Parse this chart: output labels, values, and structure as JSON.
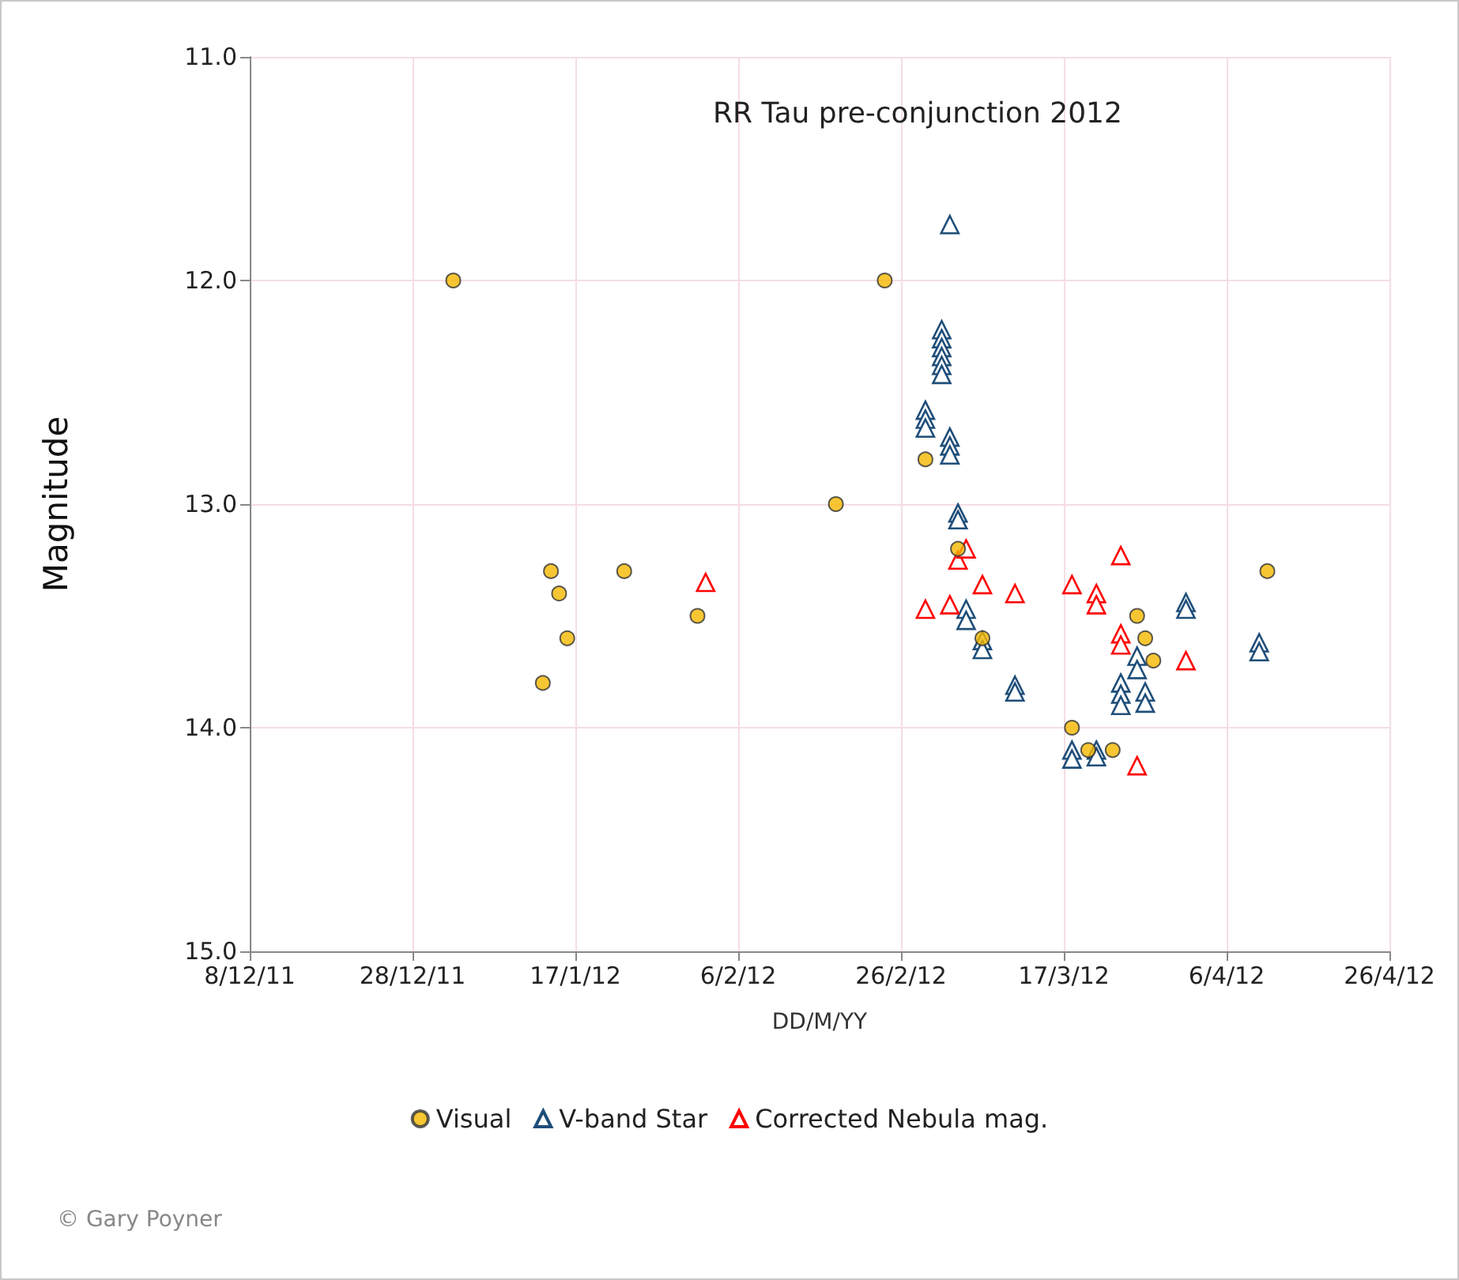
{
  "chart_data": {
    "type": "scatter",
    "title": "RR Tau pre-conjunction 2012",
    "xlabel": "DD/M/YY",
    "ylabel": "Magnitude",
    "annotations": [
      "© Gary Poyner"
    ],
    "xlim": [
      "2011-12-08",
      "2012-04-26"
    ],
    "xticks": [
      {
        "value": "2011-12-08",
        "label": "8/12/11"
      },
      {
        "value": "2011-12-28",
        "label": "28/12/11"
      },
      {
        "value": "2012-01-17",
        "label": "17/1/12"
      },
      {
        "value": "2012-02-06",
        "label": "6/2/12"
      },
      {
        "value": "2012-02-26",
        "label": "26/2/12"
      },
      {
        "value": "2012-03-17",
        "label": "17/3/12"
      },
      {
        "value": "2012-04-06",
        "label": "6/4/12"
      },
      {
        "value": "2012-04-26",
        "label": "26/4/12"
      }
    ],
    "ylim": [
      15,
      11
    ],
    "yticks": [
      {
        "value": 11,
        "label": "11.0"
      },
      {
        "value": 12,
        "label": "12.0"
      },
      {
        "value": 13,
        "label": "13.0"
      },
      {
        "value": 14,
        "label": "14.0"
      },
      {
        "value": 15,
        "label": "15.0"
      }
    ],
    "grid": true,
    "legend": "bottom",
    "series": [
      {
        "name": "Visual",
        "color": "#f5b800",
        "marker": "circle",
        "x": [
          "2012-01-02",
          "2012-01-13",
          "2012-01-14",
          "2012-01-15",
          "2012-01-16",
          "2012-01-23",
          "2012-02-01",
          "2012-02-18",
          "2012-02-24",
          "2012-02-29",
          "2012-03-04",
          "2012-03-07",
          "2012-03-18",
          "2012-03-20",
          "2012-03-23",
          "2012-03-26",
          "2012-03-27",
          "2012-03-28",
          "2012-04-11"
        ],
        "values": [
          12.0,
          13.8,
          13.3,
          13.4,
          13.6,
          13.3,
          13.5,
          13.0,
          12.0,
          12.8,
          13.2,
          13.6,
          14.0,
          14.1,
          14.1,
          13.5,
          13.6,
          13.7,
          13.3
        ]
      },
      {
        "name": "V-band Star",
        "color": "#1f4e79",
        "marker": "triangle",
        "x": [
          "2012-03-03",
          "2012-03-02",
          "2012-03-02",
          "2012-03-02",
          "2012-03-02",
          "2012-03-02",
          "2012-03-02",
          "2012-02-29",
          "2012-02-29",
          "2012-02-29",
          "2012-03-03",
          "2012-03-03",
          "2012-03-03",
          "2012-03-04",
          "2012-03-04",
          "2012-03-05",
          "2012-03-05",
          "2012-03-07",
          "2012-03-07",
          "2012-03-11",
          "2012-03-11",
          "2012-03-18",
          "2012-03-18",
          "2012-03-21",
          "2012-03-21",
          "2012-03-24",
          "2012-03-24",
          "2012-03-24",
          "2012-03-26",
          "2012-03-26",
          "2012-03-27",
          "2012-03-27",
          "2012-04-01",
          "2012-04-01",
          "2012-04-10",
          "2012-04-10"
        ],
        "values": [
          11.75,
          12.22,
          12.26,
          12.3,
          12.34,
          12.38,
          12.42,
          12.58,
          12.62,
          12.66,
          12.7,
          12.74,
          12.78,
          13.04,
          13.07,
          13.47,
          13.52,
          13.61,
          13.65,
          13.81,
          13.84,
          14.1,
          14.14,
          14.1,
          14.13,
          13.8,
          13.85,
          13.9,
          13.68,
          13.74,
          13.84,
          13.89,
          13.44,
          13.47,
          13.62,
          13.66
        ]
      },
      {
        "name": "Corrected Nebula mag.",
        "color": "#ff0000",
        "marker": "triangle",
        "x": [
          "2012-02-02",
          "2012-02-29",
          "2012-03-03",
          "2012-03-04",
          "2012-03-05",
          "2012-03-07",
          "2012-03-11",
          "2012-03-18",
          "2012-03-21",
          "2012-03-21",
          "2012-03-24",
          "2012-03-24",
          "2012-03-24",
          "2012-04-01",
          "2012-03-26"
        ],
        "values": [
          13.35,
          13.47,
          13.45,
          13.25,
          13.2,
          13.36,
          13.4,
          13.36,
          13.4,
          13.45,
          13.23,
          13.58,
          13.63,
          13.7,
          14.17
        ]
      }
    ]
  }
}
